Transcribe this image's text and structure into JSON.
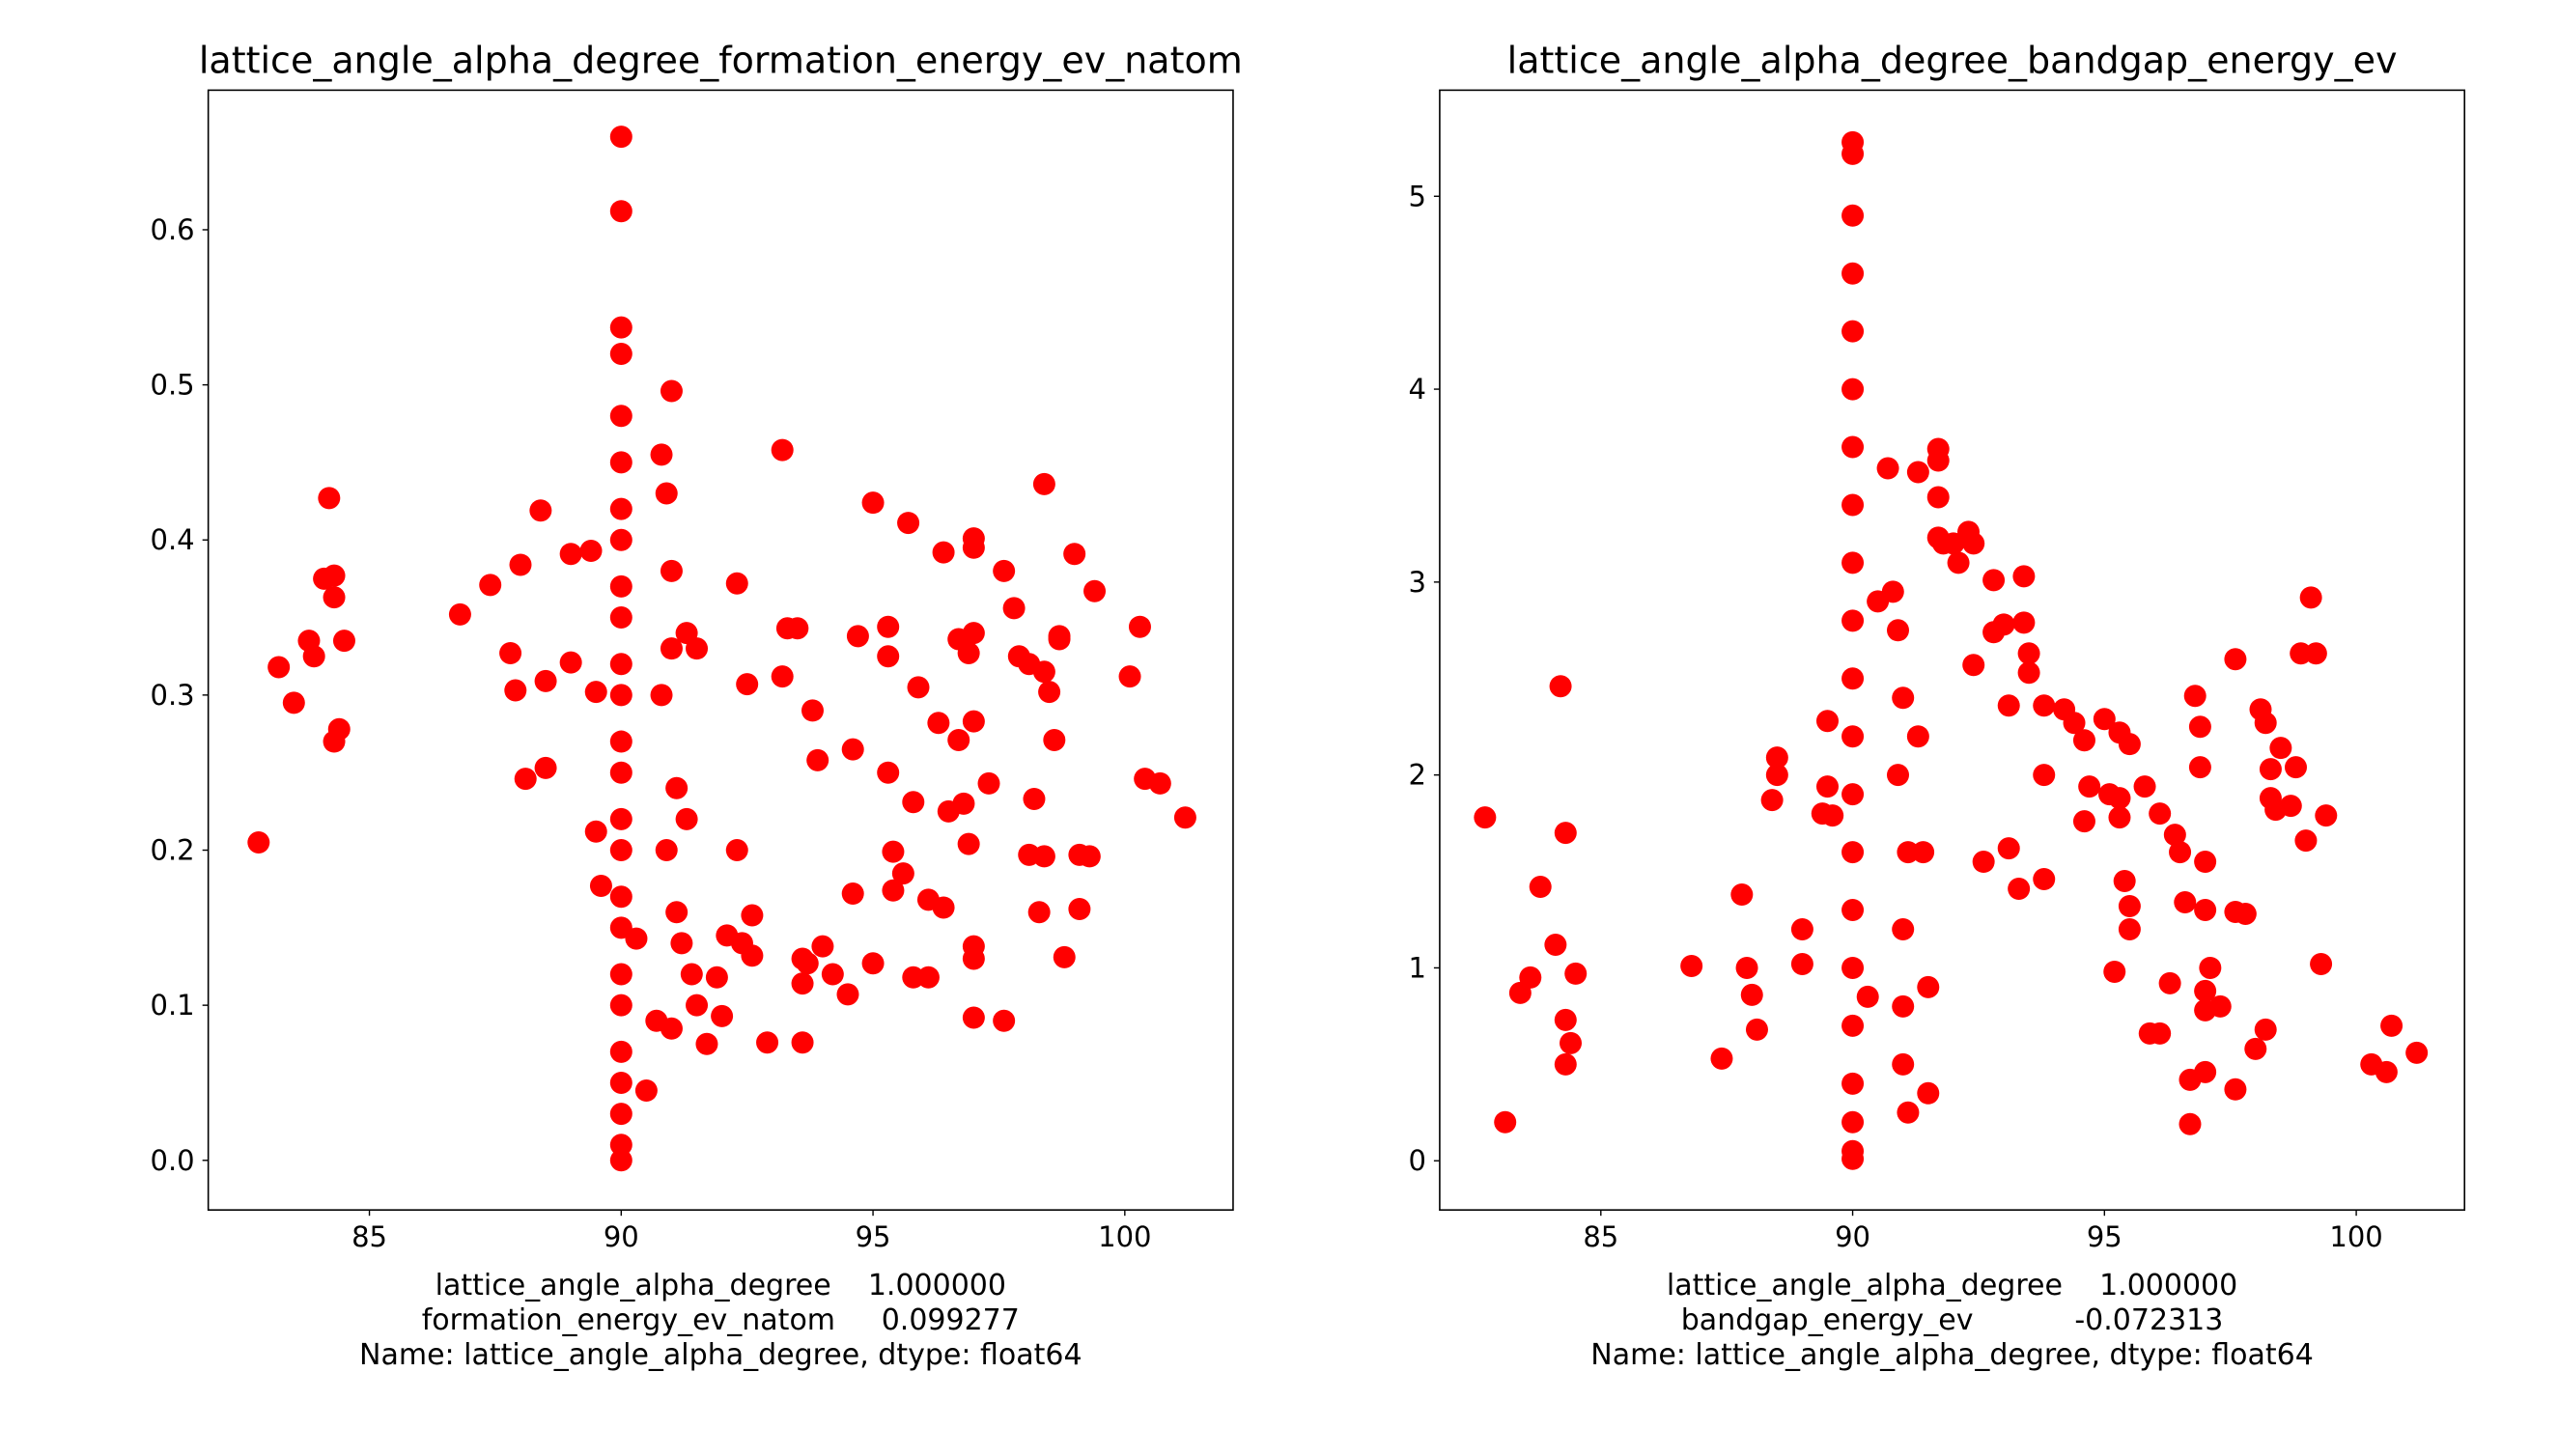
{
  "chart_data": [
    {
      "type": "scatter",
      "title": "lattice_angle_alpha_degree_formation_energy_ev_natom",
      "xlabel_lines": [
        "lattice_angle_alpha_degree    1.000000",
        "formation_energy_ev_natom     0.099277",
        "Name: lattice_angle_alpha_degree, dtype: float64"
      ],
      "color": "#ff0000",
      "xlim": [
        81.8,
        102.15
      ],
      "ylim": [
        -0.032,
        0.69
      ],
      "xticks": [
        85,
        90,
        95,
        100
      ],
      "yticks": [
        {
          "value": 0,
          "label": "0.0"
        },
        0.1,
        0.2,
        0.3,
        0.4,
        0.5,
        0.6
      ],
      "x": [
        82.8,
        83.2,
        83.5,
        83.8,
        83.9,
        84.1,
        84.2,
        84.3,
        84.3,
        84.3,
        84.4,
        84.5,
        86.8,
        87.4,
        87.8,
        87.9,
        88.0,
        88.1,
        88.4,
        88.5,
        88.5,
        89.0,
        89.0,
        89.4,
        89.5,
        89.5,
        89.6,
        90,
        90,
        90,
        90,
        90,
        90,
        90,
        90,
        90,
        90,
        90,
        90,
        90,
        90,
        90,
        90,
        90,
        90,
        90,
        90,
        90,
        90,
        90,
        90,
        90,
        90.3,
        90.5,
        90.7,
        90.8,
        90.9,
        91.0,
        91.0,
        91.0,
        90.8,
        91.1,
        90.9,
        91.1,
        91.2,
        91.0,
        91.3,
        91.5,
        91.3,
        91.4,
        91.5,
        91.7,
        91.9,
        92.0,
        92.1,
        92.3,
        92.3,
        92.4,
        92.5,
        92.6,
        92.6,
        92.9,
        93.2,
        93.2,
        93.3,
        93.5,
        93.6,
        93.6,
        93.6,
        93.7,
        93.8,
        93.9,
        94.0,
        94.2,
        94.5,
        94.6,
        94.6,
        94.7,
        95.0,
        95.0,
        95.3,
        95.3,
        95.3,
        95.4,
        95.4,
        95.6,
        95.7,
        95.8,
        95.8,
        95.9,
        96.1,
        96.1,
        96.3,
        96.4,
        96.4,
        96.5,
        96.7,
        96.7,
        96.8,
        96.9,
        96.9,
        97.0,
        97.0,
        97.0,
        97.0,
        97.0,
        97.0,
        97.0,
        97.3,
        97.6,
        97.6,
        97.8,
        97.9,
        98.1,
        98.1,
        98.2,
        98.3,
        98.4,
        98.4,
        98.4,
        98.5,
        98.6,
        98.7,
        98.7,
        98.8,
        99.0,
        99.1,
        99.1,
        99.3,
        99.4,
        100.1,
        100.3,
        100.4,
        100.7,
        101.2
      ],
      "values": [
        0.205,
        0.318,
        0.295,
        0.335,
        0.325,
        0.375,
        0.427,
        0.377,
        0.363,
        0.27,
        0.278,
        0.335,
        0.352,
        0.371,
        0.327,
        0.303,
        0.384,
        0.246,
        0.419,
        0.309,
        0.253,
        0.321,
        0.391,
        0.393,
        0.302,
        0.212,
        0.177,
        0.66,
        0.612,
        0.537,
        0.52,
        0.48,
        0.45,
        0.42,
        0.4,
        0.37,
        0.35,
        0.32,
        0.3,
        0.27,
        0.25,
        0.22,
        0.2,
        0.17,
        0.15,
        0.12,
        0.1,
        0.07,
        0.05,
        0.03,
        0.01,
        0.0,
        0.143,
        0.045,
        0.09,
        0.455,
        0.43,
        0.496,
        0.38,
        0.33,
        0.3,
        0.24,
        0.2,
        0.16,
        0.14,
        0.085,
        0.34,
        0.33,
        0.22,
        0.12,
        0.1,
        0.075,
        0.118,
        0.093,
        0.145,
        0.372,
        0.2,
        0.14,
        0.307,
        0.132,
        0.158,
        0.076,
        0.458,
        0.312,
        0.343,
        0.343,
        0.13,
        0.114,
        0.076,
        0.127,
        0.29,
        0.258,
        0.138,
        0.12,
        0.107,
        0.265,
        0.172,
        0.338,
        0.424,
        0.127,
        0.344,
        0.325,
        0.25,
        0.199,
        0.174,
        0.185,
        0.411,
        0.118,
        0.231,
        0.305,
        0.168,
        0.118,
        0.282,
        0.163,
        0.392,
        0.225,
        0.271,
        0.336,
        0.23,
        0.204,
        0.327,
        0.401,
        0.395,
        0.34,
        0.283,
        0.138,
        0.13,
        0.092,
        0.243,
        0.09,
        0.38,
        0.356,
        0.325,
        0.197,
        0.32,
        0.233,
        0.16,
        0.436,
        0.196,
        0.315,
        0.302,
        0.271,
        0.336,
        0.338,
        0.131,
        0.391,
        0.197,
        0.162,
        0.196,
        0.367,
        0.312,
        0.344,
        0.246,
        0.243,
        0.221
      ]
    },
    {
      "type": "scatter",
      "title": "lattice_angle_alpha_degree_bandgap_energy_ev",
      "xlabel_lines": [
        "lattice_angle_alpha_degree    1.000000",
        "bandgap_energy_ev           -0.072313",
        "Name: lattice_angle_alpha_degree, dtype: float64"
      ],
      "color": "#ff0000",
      "xlim": [
        81.8,
        102.15
      ],
      "ylim": [
        -0.255,
        5.55
      ],
      "xticks": [
        85,
        90,
        95,
        100
      ],
      "yticks": [
        0,
        1,
        2,
        3,
        4,
        5
      ],
      "x": [
        82.7,
        83.1,
        83.4,
        83.6,
        83.8,
        84.1,
        84.2,
        84.3,
        84.3,
        84.3,
        84.4,
        84.5,
        86.8,
        87.4,
        87.8,
        87.9,
        88.0,
        88.1,
        88.4,
        88.5,
        88.5,
        89.0,
        89.0,
        89.4,
        89.5,
        89.5,
        89.6,
        90,
        90,
        90,
        90,
        90,
        90,
        90,
        90,
        90,
        90,
        90,
        90,
        90,
        90,
        90,
        90,
        90,
        90,
        90,
        90,
        90,
        90.3,
        90.5,
        90.7,
        90.8,
        90.9,
        91.0,
        90.9,
        91.1,
        91.0,
        91.0,
        91.0,
        91.1,
        91.3,
        91.3,
        91.4,
        91.5,
        91.5,
        91.7,
        91.7,
        91.7,
        91.7,
        91.8,
        92.0,
        92.1,
        92.3,
        92.4,
        92.4,
        92.6,
        92.8,
        92.8,
        93.0,
        93.1,
        93.1,
        93.3,
        93.4,
        93.4,
        93.5,
        93.5,
        93.8,
        93.8,
        93.8,
        94.2,
        94.4,
        94.6,
        94.6,
        94.7,
        95.0,
        95.1,
        95.2,
        95.3,
        95.3,
        95.3,
        95.5,
        95.4,
        95.5,
        95.5,
        95.8,
        95.9,
        96.1,
        96.1,
        96.3,
        96.4,
        96.5,
        96.6,
        96.7,
        96.7,
        96.8,
        96.9,
        96.9,
        97.0,
        97.0,
        97.0,
        97.0,
        97.0,
        97.1,
        97.3,
        97.6,
        97.6,
        97.6,
        97.8,
        98.0,
        98.1,
        98.2,
        98.2,
        98.3,
        98.3,
        98.4,
        98.5,
        98.7,
        98.8,
        98.9,
        99.0,
        99.1,
        99.2,
        99.3,
        99.4,
        100.3,
        100.6,
        100.7,
        101.2
      ],
      "values": [
        1.78,
        0.2,
        0.87,
        0.95,
        1.42,
        1.12,
        2.46,
        1.7,
        0.73,
        0.5,
        0.61,
        0.97,
        1.01,
        0.53,
        1.38,
        1.0,
        0.86,
        0.68,
        1.87,
        2.09,
        2.0,
        1.02,
        1.2,
        1.8,
        1.94,
        2.28,
        1.79,
        5.28,
        5.22,
        4.9,
        4.6,
        4.3,
        4.0,
        3.7,
        3.4,
        3.1,
        2.8,
        2.5,
        2.2,
        1.9,
        1.6,
        1.3,
        1.0,
        0.7,
        0.4,
        0.2,
        0.05,
        0.01,
        0.85,
        2.9,
        3.59,
        2.95,
        2.75,
        2.4,
        2.0,
        1.6,
        1.2,
        0.8,
        0.5,
        0.25,
        3.57,
        2.2,
        1.6,
        0.9,
        0.35,
        3.69,
        3.63,
        3.44,
        3.23,
        3.2,
        3.2,
        3.1,
        3.26,
        3.2,
        2.57,
        1.55,
        2.74,
        3.01,
        2.78,
        2.36,
        1.62,
        1.41,
        3.03,
        2.79,
        2.53,
        2.63,
        2.36,
        2.0,
        1.46,
        2.34,
        2.27,
        2.18,
        1.76,
        1.94,
        2.29,
        1.9,
        0.98,
        1.78,
        1.88,
        2.22,
        2.16,
        1.45,
        1.32,
        1.2,
        1.94,
        0.66,
        1.8,
        0.66,
        0.92,
        1.69,
        1.6,
        1.34,
        0.42,
        0.19,
        2.41,
        2.25,
        2.04,
        1.55,
        1.3,
        0.88,
        0.78,
        0.46,
        1.0,
        0.8,
        2.6,
        1.29,
        0.37,
        1.28,
        0.58,
        2.34,
        2.27,
        0.68,
        2.03,
        1.88,
        1.82,
        2.14,
        1.84,
        2.04,
        2.63,
        1.66,
        2.92,
        2.63,
        1.02,
        1.79,
        0.5,
        0.46,
        0.7,
        0.56
      ]
    }
  ]
}
